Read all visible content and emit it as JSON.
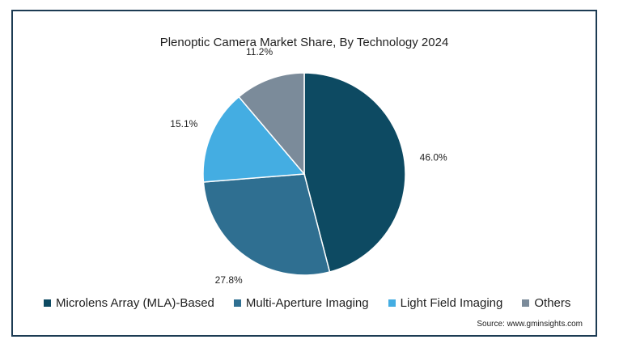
{
  "chart_data": {
    "type": "pie",
    "title": "Plenoptic Camera Market Share, By Technology 2024",
    "slices": [
      {
        "name": "Microlens Array (MLA)-Based",
        "value": 46.0,
        "label": "46.0%",
        "color": "#0d4a62"
      },
      {
        "name": "Multi-Aperture Imaging",
        "value": 27.8,
        "label": "27.8%",
        "color": "#2f6f91"
      },
      {
        "name": "Light Field Imaging",
        "value": 15.1,
        "label": "15.1%",
        "color": "#44ade2"
      },
      {
        "name": "Others",
        "value": 11.2,
        "label": "11.2%",
        "color": "#7b8b9a"
      }
    ],
    "legend_position": "bottom",
    "source": "Source: www.gminsights.com"
  }
}
